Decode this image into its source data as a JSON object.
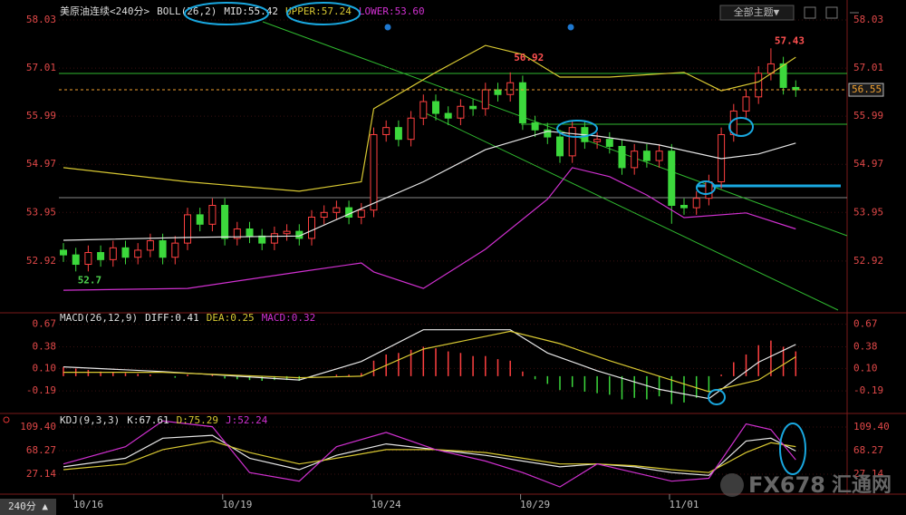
{
  "ui": {
    "theme_button": "全部主题▼",
    "period_button": "240分 ▲",
    "watermark": "FX678",
    "watermark_cn": "汇通网"
  },
  "chart_data": [
    {
      "type": "candlestick",
      "title": "美原油连续<240分>",
      "indicator": "BOLL(26,2)",
      "categories": [
        null,
        null,
        "10/16",
        null,
        null,
        null,
        null,
        null,
        null,
        null,
        null,
        null,
        null,
        null,
        "10/19",
        null,
        null,
        null,
        null,
        null,
        null,
        null,
        null,
        null,
        null,
        null,
        "10/24",
        null,
        null,
        null,
        null,
        null,
        null,
        null,
        null,
        null,
        null,
        null,
        "10/29",
        null,
        null,
        null,
        null,
        null,
        null,
        null,
        null,
        null,
        null,
        null,
        "11/01",
        null,
        null,
        null,
        null,
        null,
        null,
        null,
        null,
        null
      ],
      "open": [
        53.15,
        53.05,
        52.85,
        53.1,
        52.95,
        53.2,
        53.0,
        53.15,
        53.35,
        53.0,
        53.3,
        53.9,
        53.7,
        54.1,
        53.4,
        53.6,
        53.45,
        53.3,
        53.5,
        53.55,
        53.4,
        53.85,
        53.95,
        54.05,
        53.85,
        54.0,
        55.6,
        55.75,
        55.5,
        55.95,
        56.3,
        56.05,
        55.95,
        56.2,
        56.15,
        56.55,
        56.45,
        56.7,
        55.85,
        55.7,
        55.55,
        55.15,
        55.75,
        55.45,
        55.5,
        55.35,
        54.9,
        55.25,
        55.05,
        55.25,
        54.1,
        54.05,
        54.25,
        54.6,
        55.6,
        56.1,
        56.4,
        56.9,
        57.1,
        56.6
      ],
      "high": [
        53.3,
        53.2,
        53.25,
        53.25,
        53.35,
        53.35,
        53.3,
        53.5,
        53.5,
        53.45,
        54.05,
        54.05,
        54.25,
        54.25,
        53.75,
        53.75,
        53.6,
        53.65,
        53.7,
        53.7,
        54.0,
        54.1,
        54.2,
        54.2,
        54.15,
        55.75,
        55.9,
        55.9,
        56.1,
        56.45,
        56.45,
        56.2,
        56.35,
        56.35,
        56.7,
        56.7,
        56.92,
        56.85,
        56.0,
        55.85,
        55.7,
        55.9,
        55.9,
        55.65,
        55.65,
        55.5,
        55.4,
        55.4,
        55.4,
        55.4,
        54.25,
        54.4,
        54.75,
        55.75,
        56.25,
        56.55,
        57.05,
        57.43,
        57.25,
        56.75
      ],
      "low": [
        52.9,
        52.7,
        52.7,
        52.8,
        52.8,
        52.85,
        52.85,
        53.0,
        52.85,
        52.85,
        53.15,
        53.55,
        53.55,
        53.25,
        53.25,
        53.3,
        53.15,
        53.15,
        53.35,
        53.25,
        53.25,
        53.7,
        53.8,
        53.7,
        53.7,
        53.85,
        55.45,
        55.35,
        55.35,
        55.8,
        55.9,
        55.8,
        55.8,
        56.0,
        56.0,
        56.3,
        56.3,
        55.7,
        55.55,
        55.4,
        55.0,
        55.0,
        55.3,
        55.3,
        55.2,
        54.75,
        54.75,
        54.9,
        54.9,
        53.71,
        53.9,
        53.9,
        54.1,
        54.45,
        55.45,
        55.95,
        56.25,
        56.75,
        56.45,
        56.4
      ],
      "close": [
        53.05,
        52.85,
        53.1,
        52.95,
        53.2,
        53.0,
        53.15,
        53.35,
        53.0,
        53.3,
        53.9,
        53.7,
        54.1,
        53.4,
        53.6,
        53.45,
        53.3,
        53.5,
        53.55,
        53.4,
        53.85,
        53.95,
        54.05,
        53.85,
        54.0,
        55.6,
        55.75,
        55.5,
        55.95,
        56.3,
        56.05,
        55.95,
        56.2,
        56.15,
        56.55,
        56.45,
        56.7,
        55.85,
        55.7,
        55.55,
        55.15,
        55.75,
        55.45,
        55.5,
        55.35,
        54.9,
        55.25,
        55.05,
        55.25,
        54.1,
        54.05,
        54.25,
        54.6,
        55.6,
        56.1,
        56.4,
        56.9,
        57.1,
        56.6,
        56.55
      ],
      "up_color": "#ff4040",
      "down_color": "#3cd83c",
      "last_price_color": "#f0a030",
      "ylim": [
        51.88,
        58.3
      ],
      "yticks": [
        52.92,
        53.95,
        54.97,
        55.99,
        57.01,
        58.03
      ],
      "series": [
        {
          "name": "MID:55.42",
          "color": "#e6e6e6",
          "x": [
            0,
            10,
            19,
            24,
            29,
            34,
            39,
            43,
            48,
            53,
            56,
            59
          ],
          "values": [
            53.36,
            53.42,
            53.45,
            54.03,
            54.6,
            55.28,
            55.67,
            55.57,
            55.38,
            55.09,
            55.19,
            55.42
          ]
        },
        {
          "name": "UPPER:57.24",
          "color": "#d8c832",
          "x": [
            0,
            10,
            19,
            24,
            25,
            30,
            34,
            37,
            40,
            44,
            50,
            53,
            56,
            59
          ],
          "values": [
            54.9,
            54.6,
            54.4,
            54.6,
            56.15,
            56.92,
            57.49,
            57.3,
            56.82,
            56.82,
            56.92,
            56.53,
            56.72,
            57.24
          ]
        },
        {
          "name": "LOWER:53.60",
          "color": "#d030d0",
          "x": [
            0,
            10,
            19,
            24,
            25,
            29,
            34,
            39,
            41,
            44,
            47,
            50,
            55,
            59
          ],
          "values": [
            52.3,
            52.34,
            52.69,
            52.88,
            52.69,
            52.34,
            53.17,
            54.23,
            54.9,
            54.71,
            54.32,
            53.84,
            53.94,
            53.6
          ]
        }
      ]
    },
    {
      "type": "macd",
      "title": "MACD(26,12,9)",
      "bars": {
        "name": "MACD:0.32",
        "values": [
          0.12,
          0.1,
          0.08,
          0.06,
          0.05,
          0.04,
          0.03,
          0.02,
          0.0,
          -0.02,
          0.02,
          0.0,
          0.03,
          -0.03,
          -0.04,
          -0.05,
          -0.06,
          -0.05,
          -0.05,
          -0.06,
          -0.02,
          0.0,
          0.02,
          0.02,
          0.04,
          0.2,
          0.28,
          0.3,
          0.34,
          0.38,
          0.36,
          0.32,
          0.3,
          0.26,
          0.26,
          0.22,
          0.2,
          0.06,
          -0.04,
          -0.1,
          -0.18,
          -0.14,
          -0.2,
          -0.22,
          -0.24,
          -0.3,
          -0.28,
          -0.3,
          -0.26,
          -0.36,
          -0.34,
          -0.28,
          -0.2,
          0.02,
          0.18,
          0.28,
          0.4,
          0.46,
          0.38,
          0.32
        ]
      },
      "up_color": "#ff4040",
      "down_color": "#3cd83c",
      "ylim": [
        -0.47,
        0.76
      ],
      "yticks": [
        -0.19,
        {
          "value": 0.1,
          "label": "0.10"
        },
        0.38,
        0.67
      ],
      "series": [
        {
          "name": "DIFF:0.41",
          "color": "#e6e6e6",
          "x": [
            0,
            8,
            19,
            24,
            29,
            36,
            39,
            43,
            48,
            52,
            56,
            59
          ],
          "values": [
            0.12,
            0.06,
            -0.05,
            0.19,
            0.6,
            0.6,
            0.3,
            0.07,
            -0.17,
            -0.29,
            0.18,
            0.41
          ]
        },
        {
          "name": "DEA:0.25",
          "color": "#d8c832",
          "x": [
            0,
            8,
            19,
            24,
            29,
            36,
            40,
            44,
            48,
            52,
            56,
            59
          ],
          "values": [
            0.05,
            0.05,
            -0.02,
            0.0,
            0.35,
            0.58,
            0.42,
            0.2,
            0.0,
            -0.2,
            -0.05,
            0.25
          ]
        }
      ]
    },
    {
      "type": "line",
      "title": "KDJ(9,3,3)",
      "ylim": [
        -23.5,
        126.8
      ],
      "yticks": [
        27.14,
        68.27,
        {
          "value": 109.4,
          "label": "109.40"
        }
      ],
      "series": [
        {
          "name": "K:67.61",
          "color": "#e6e6e6",
          "x": [
            0,
            5,
            8,
            12,
            15,
            19,
            22,
            26,
            30,
            34,
            37,
            40,
            43,
            46,
            49,
            52,
            55,
            57,
            59
          ],
          "values": [
            40,
            55,
            90,
            95,
            55,
            35,
            60,
            80,
            70,
            60,
            50,
            40,
            45,
            40,
            30,
            25,
            85,
            90,
            67.61
          ]
        },
        {
          "name": "D:75.29",
          "color": "#d8c832",
          "x": [
            0,
            5,
            8,
            12,
            15,
            19,
            22,
            26,
            30,
            34,
            37,
            40,
            43,
            46,
            49,
            52,
            55,
            57,
            59
          ],
          "values": [
            35,
            45,
            70,
            85,
            65,
            45,
            55,
            70,
            70,
            65,
            55,
            45,
            45,
            42,
            35,
            30,
            65,
            82,
            75.29
          ]
        },
        {
          "name": "J:52.24",
          "color": "#d030d0",
          "x": [
            0,
            5,
            8,
            12,
            15,
            19,
            22,
            26,
            30,
            34,
            37,
            40,
            43,
            46,
            49,
            52,
            55,
            57,
            59
          ],
          "values": [
            45,
            75,
            120,
            110,
            30,
            15,
            75,
            100,
            70,
            50,
            30,
            5,
            45,
            30,
            15,
            20,
            115,
            105,
            52.24
          ]
        }
      ]
    }
  ]
}
